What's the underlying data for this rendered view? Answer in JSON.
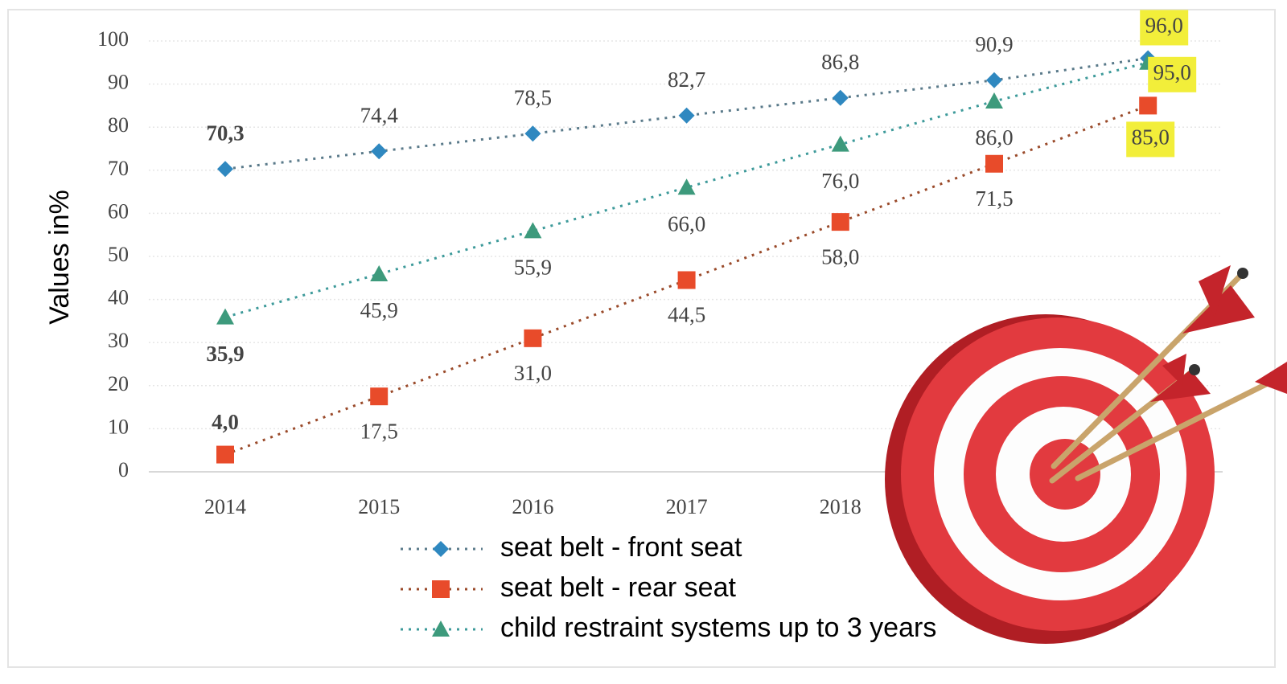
{
  "chart_data": {
    "type": "line",
    "y_label": "Values in%",
    "categories": [
      "2014",
      "2015",
      "2016",
      "2017",
      "2018",
      null,
      null
    ],
    "series": [
      {
        "name": "seat belt - front seat",
        "color": "#2f88c0",
        "marker": "diamond",
        "values": [
          70.3,
          74.4,
          78.5,
          82.7,
          86.8,
          90.9,
          96.0
        ],
        "value_labels": [
          "70,3",
          "74,4",
          "78,5",
          "82,7",
          "86,8",
          "90,9",
          "96,0"
        ]
      },
      {
        "name": "seat belt - rear seat",
        "color": "#e84b2a",
        "marker": "square",
        "values": [
          4.0,
          17.5,
          31.0,
          44.5,
          58.0,
          71.5,
          85.0
        ],
        "value_labels": [
          "4,0",
          "17,5",
          "31,0",
          "44,5",
          "58,0",
          "71,5",
          "85,0"
        ]
      },
      {
        "name": "child restraint systems up to 3 years",
        "color": "#3d9a7c",
        "marker": "triangle",
        "values": [
          35.9,
          45.9,
          55.9,
          66.0,
          76.0,
          86.0,
          95.0
        ],
        "value_labels": [
          "35,9",
          "45,9",
          "55,9",
          "66,0",
          "76,0",
          "86,0",
          "95,0"
        ]
      }
    ],
    "ylim": [
      0,
      100
    ],
    "yticks": [
      0,
      10,
      20,
      30,
      40,
      50,
      60,
      70,
      80,
      90,
      100
    ],
    "grid": true
  }
}
